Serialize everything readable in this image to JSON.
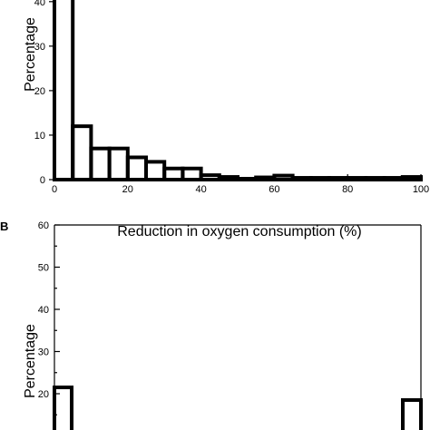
{
  "chart_data": [
    {
      "type": "bar",
      "panel_label": "",
      "xlabel": "Reduction in oxygen consumption (%)",
      "ylabel": "Percentage",
      "ylim": [
        0,
        42
      ],
      "xlim": [
        0,
        100
      ],
      "xticks": [
        "0",
        "20",
        "40",
        "60",
        "80",
        "100"
      ],
      "yticks": [
        "0",
        "10",
        "20",
        "30",
        "40"
      ],
      "bin_edges": [
        0,
        5,
        10,
        15,
        20,
        25,
        30,
        35,
        40,
        45,
        50,
        55,
        60,
        65,
        70,
        75,
        80,
        85,
        90,
        95,
        100
      ],
      "values": [
        42,
        12,
        7,
        7,
        5,
        4,
        2.5,
        2.5,
        1,
        0.6,
        0.2,
        0.5,
        0.9,
        0.4,
        0.4,
        0.4,
        0.4,
        0.4,
        0.4,
        0.6
      ]
    },
    {
      "type": "bar",
      "panel_label": "B",
      "xlabel": "",
      "ylabel": "Percentage",
      "ylim": [
        0,
        60
      ],
      "yticks": [
        "20",
        "30",
        "40",
        "50",
        "60"
      ],
      "values_visible": {
        "first_bin": 21.5,
        "last_bin": 18.5
      }
    }
  ]
}
